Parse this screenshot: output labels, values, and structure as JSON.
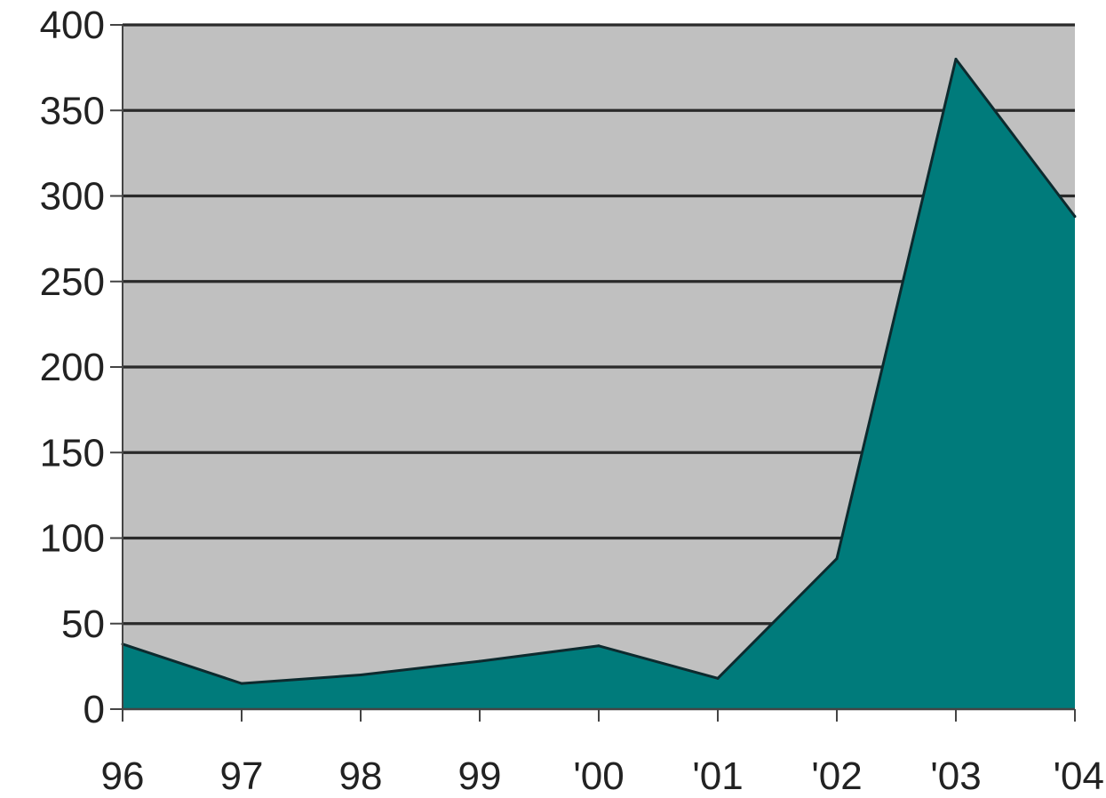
{
  "chart_data": {
    "type": "area",
    "title": "",
    "xlabel": "",
    "ylabel": "",
    "categories": [
      "96",
      "97",
      "98",
      "99",
      "'00",
      "'01",
      "'02",
      "'03",
      "'04"
    ],
    "series": [
      {
        "values": [
          38,
          15,
          20,
          28,
          37,
          18,
          88,
          380,
          288
        ]
      }
    ],
    "ylim": [
      0,
      400
    ],
    "yticks": [
      0,
      50,
      100,
      150,
      200,
      250,
      300,
      350,
      400
    ],
    "grid": true,
    "legend": "none",
    "colors": {
      "plot_background": "#c0c0c0",
      "area_fill": "#007b7b",
      "area_outline": "#0d2a2e",
      "gridline": "#2a2a2a",
      "axis": "#444444",
      "tick_text": "#222222"
    }
  }
}
